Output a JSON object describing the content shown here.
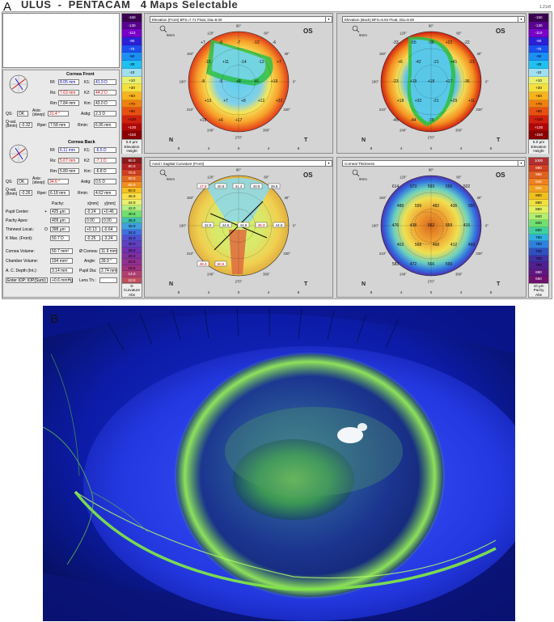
{
  "panel_labels": {
    "a": "A",
    "b": "B"
  },
  "app": {
    "title": "ULUS  -  PENTACAM   4 Maps Selectable",
    "version": "1.21r8"
  },
  "cornea_front": {
    "header": "Cornea Front",
    "rf_label": "Rf:",
    "rf": "8.05 mm",
    "k1_label": "K1:",
    "k1": "41.9 D",
    "rs_label": "Rs:",
    "rs": "7.63 mm",
    "k2_label": "K2:",
    "k2": "44.2 D",
    "rm_label": "Rm:",
    "rm": "7.84 mm",
    "km_label": "Km:",
    "km": "43.0 D",
    "qs_label": "QS:",
    "qs": "OK",
    "axis_label": "Axis:\n(steep)",
    "axis": "31.4 °",
    "astig_label": "Astig:",
    "astig": "2.3 D",
    "qval_label": "Q-val.\n(8mm)",
    "qval": "-0.32",
    "rper_label": "Rper:",
    "rper": "7.58 mm",
    "rmin_label": "Rmin:",
    "rmin": "6.95 mm"
  },
  "cornea_back": {
    "header": "Cornea Back",
    "rf_label": "Rf:",
    "rf": "6.11 mm",
    "k1_label": "K1:",
    "k1": "-6.5 D",
    "rs_label": "Rs:",
    "rs": "5.67 mm",
    "k2_label": "K2:",
    "k2": "-7.1 D",
    "rm_label": "Rm:",
    "rm": "5.89 mm",
    "km_label": "Km:",
    "km": "-6.8 D",
    "qs_label": "QS:",
    "qs": "OK",
    "axis_label": "Axis:\n(steep)",
    "axis": "34.6 °",
    "astig_label": "Astig:",
    "astig": "0.5 D",
    "qval_label": "Q-val.\n(8mm)",
    "qval": "-0.26",
    "rper_label": "Rper:",
    "rper": "6.18 mm",
    "rmin_label": "Rmin:",
    "rmin": "4.62 mm"
  },
  "pachy_table": {
    "col_pachy": "Pachy:",
    "col_x": "x[mm]",
    "col_y": "y[mm]",
    "pupil_center_label": "Pupil Center:",
    "pupil_center_marker": "+",
    "pupil_center": "425 µm",
    "pupil_center_x": "-0.24",
    "pupil_center_y": "+0.46",
    "pachy_apex_label": "Pachy Apex:",
    "pachy_apex": "409 µm",
    "pachy_apex_x": "0.00",
    "pachy_apex_y": "0.00",
    "thinnest_label": "Thinnest Locat.:",
    "thinnest_marker": "O",
    "thinnest": "398 µm",
    "thinnest_x": "+0.13",
    "thinnest_y": "-0.64",
    "kmax_label": "K Max. (Front):",
    "kmax": "50.7 D",
    "kmax_x": "-0.25",
    "kmax_y": "-3.24"
  },
  "volumes": {
    "cornea_volume_label": "Cornea Volume:",
    "cornea_volume": "50.7 mm³",
    "cornea_dia_label": "Ø Cornea:",
    "cornea_dia": "11.9 mm",
    "chamber_volume_label": "Chamber Volume:",
    "chamber_volume": "194 mm³",
    "angle_label": "Angle:",
    "angle": "39.9 °",
    "ac_depth_label": "A. C. Depth (Int.):",
    "ac_depth": "3.14 mm",
    "pupil_dia_label": "Pupil Dia:",
    "pupil_dia": "2.74 mm",
    "iop_label": "Enter IOP: IOP(Sum):",
    "iop": "+0.6 mmHg",
    "lens_label": "Lens Th.:",
    "lens": ""
  },
  "maps": {
    "elev_front": {
      "title": "Elevation (Front)  BFS=7.71 Float, Dia=8.00",
      "eye": "OS",
      "zoom": "9mm",
      "nasal": "N",
      "temporal": "T",
      "xticks": [
        "8",
        "4",
        "0",
        "4",
        "8"
      ],
      "angles": [
        "90°",
        "120°",
        "60°",
        "150°",
        "30°",
        "180°",
        "0°",
        "210°",
        "330°",
        "240°",
        "300°",
        "270°"
      ],
      "values": [
        "+7",
        "-6",
        "-7",
        "-12",
        "-6",
        "-15",
        "+11",
        "-14",
        "-12",
        "+7",
        "-8",
        "-5",
        "+8",
        "+6",
        "+19",
        "+13",
        "+7",
        "+8",
        "+12",
        "+32",
        "+19",
        "+6",
        "+17"
      ]
    },
    "elev_back": {
      "title": "Elevation (Back)  BFS=5.84 Float, Dia=8.00",
      "eye": "OS",
      "zoom": "9mm",
      "nasal": "N",
      "temporal": "T",
      "xticks": [
        "8",
        "4",
        "0",
        "4",
        "8"
      ],
      "angles": [
        "90°",
        "120°",
        "60°",
        "150°",
        "30°",
        "180°",
        "0°",
        "210°",
        "330°",
        "240°",
        "300°",
        "270°"
      ],
      "values": [
        "-33",
        "-55",
        "-38",
        "+22",
        "-22",
        "+6",
        "-42",
        "-21",
        "+41",
        "-21",
        "-23",
        "+19",
        "+18",
        "+17",
        "-36",
        "+18",
        "+32",
        "-21",
        "+29",
        "+11",
        "-45",
        "-44",
        "-75"
      ]
    },
    "axial": {
      "title": "Axial / Sagittal Curvature (Front)",
      "eye": "OS",
      "zoom": "9mm",
      "nasal": "N",
      "temporal": "T",
      "xticks": [
        "8",
        "4",
        "0",
        "4",
        "8"
      ],
      "angles": [
        "90°",
        "120°",
        "60°",
        "150°",
        "30°",
        "180°",
        "0°",
        "210°",
        "330°",
        "240°",
        "300°",
        "270°"
      ],
      "values": [
        "47.8",
        "40.9",
        "41.4",
        "40.9",
        "39.8",
        "42.9",
        "44.5",
        "44.6",
        "45.3",
        "44.6",
        "49.3",
        "50.5"
      ]
    },
    "thickness": {
      "title": "Corneal Thickness",
      "eye": "OS",
      "zoom": "9mm",
      "nasal": "N",
      "temporal": "T",
      "xticks": [
        "8",
        "4",
        "0",
        "4",
        "8"
      ],
      "angles": [
        "90°",
        "120°",
        "60°",
        "150°",
        "30°",
        "180°",
        "0°",
        "210°",
        "330°",
        "240°",
        "300°",
        "270°"
      ],
      "values": [
        "614",
        "573",
        "593",
        "556",
        "502",
        "488",
        "599",
        "482",
        "436",
        "555",
        "476",
        "438",
        "562",
        "559",
        "415",
        "403",
        "568",
        "468",
        "412",
        "468",
        "583",
        "472",
        "566",
        "599"
      ]
    }
  },
  "scales": {
    "elevation_values": [
      "-150",
      "-130",
      "-110",
      "-90",
      "-70",
      "-50",
      "-30",
      "-10",
      "+10",
      "+30",
      "+50",
      "+70",
      "+90",
      "+110",
      "+130",
      "+150"
    ],
    "elevation_foot": [
      "5.0 µm",
      "Elevation",
      "Height"
    ],
    "curvature_values": [
      "90.0",
      "80.0",
      "70.0",
      "60.0",
      "55.0",
      "50.0",
      "46.0",
      "44.0",
      "42.0",
      "40.0",
      "38.0",
      "36.0",
      "34.0",
      "32.0",
      "30.0",
      "28.0",
      "26.0",
      "22.0",
      "18.0",
      "14.0",
      "10.0"
    ],
    "curvature_foot": [
      "D",
      "Curvature",
      "Abs"
    ],
    "pachy_values": [
      "1000",
      "980",
      "960",
      "940",
      "920",
      "900",
      "880",
      "860",
      "840",
      "820",
      "800",
      "780",
      "760",
      "740",
      "720",
      "700",
      "680",
      "660",
      "640",
      "620",
      "600",
      "580",
      "560",
      "540",
      "520",
      "500",
      "480",
      "460",
      "440",
      "420",
      "400",
      "380",
      "360",
      "340",
      "320",
      "300"
    ],
    "pachy_foot": [
      "10 µm",
      "Pachy",
      "Abs"
    ]
  },
  "colors": {
    "panel_bg": "#d8d8d8",
    "front_accent": "#0000cc",
    "back_accent": "#cc0000"
  }
}
